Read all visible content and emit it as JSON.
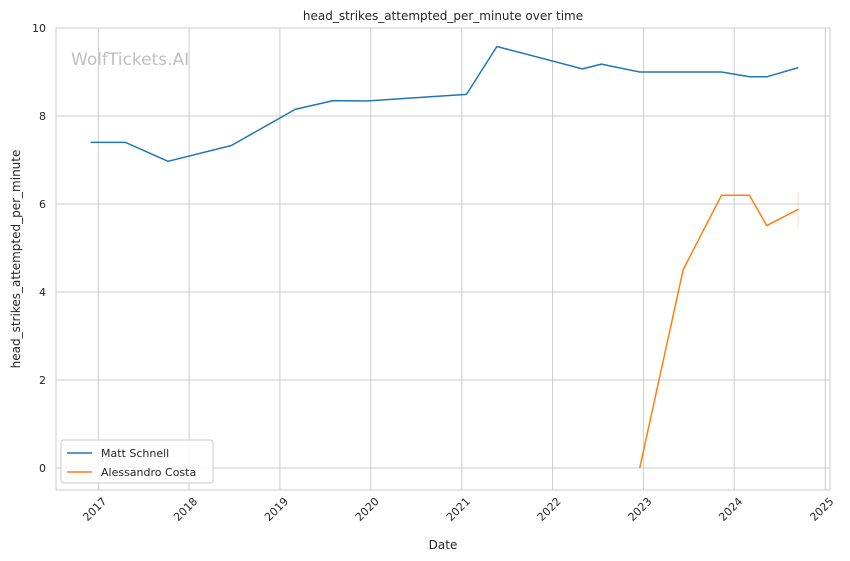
{
  "chart_data": {
    "type": "line",
    "title": "head_strikes_attempted_per_minute over time",
    "xlabel": "Date",
    "ylabel": "head_strikes_attempted_per_minute",
    "watermark": "WolfTickets.AI",
    "xlim": [
      "2016-07-15",
      "2025-01-20"
    ],
    "ylim": [
      -0.5,
      10
    ],
    "x_ticks": [
      "2017",
      "2018",
      "2019",
      "2020",
      "2021",
      "2022",
      "2023",
      "2024",
      "2025"
    ],
    "y_ticks": [
      "0",
      "2",
      "4",
      "6",
      "8",
      "10"
    ],
    "grid": true,
    "legend_position": "lower-left",
    "series": [
      {
        "name": "Matt Schnell",
        "color": "#1f77b4",
        "points": [
          [
            "2016-12-01",
            7.4
          ],
          [
            "2017-04-20",
            7.4
          ],
          [
            "2017-10-08",
            6.97
          ],
          [
            "2018-06-20",
            7.33
          ],
          [
            "2019-03-03",
            8.15
          ],
          [
            "2019-08-03",
            8.35
          ],
          [
            "2019-12-14",
            8.34
          ],
          [
            "2021-01-20",
            8.49
          ],
          [
            "2021-05-22",
            9.58
          ],
          [
            "2022-05-01",
            9.07
          ],
          [
            "2022-07-16",
            9.18
          ],
          [
            "2022-12-17",
            9.0
          ],
          [
            "2023-11-11",
            9.0
          ],
          [
            "2024-03-02",
            8.89
          ],
          [
            "2024-05-11",
            8.89
          ],
          [
            "2024-09-14",
            9.1
          ]
        ]
      },
      {
        "name": "Alessandro Costa",
        "color": "#ff7f0e",
        "points": [
          [
            "2022-12-17",
            0.0
          ],
          [
            "2023-06-10",
            4.51
          ],
          [
            "2023-11-11",
            6.2
          ],
          [
            "2024-03-02",
            6.2
          ],
          [
            "2024-05-11",
            5.51
          ],
          [
            "2024-09-14",
            5.88
          ]
        ],
        "error_bar": {
          "x": "2024-09-14",
          "low": 5.48,
          "high": 6.28
        }
      }
    ]
  }
}
